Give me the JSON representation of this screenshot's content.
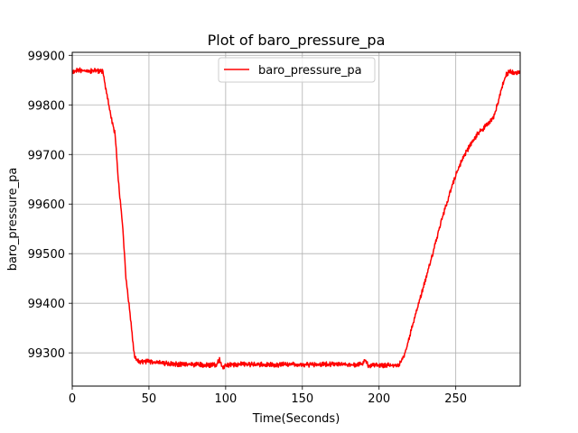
{
  "chart_data": {
    "type": "line",
    "title": "Plot of baro_pressure_pa",
    "xlabel": "Time(Seconds)",
    "ylabel": "baro_pressure_pa",
    "xlim": [
      0,
      292
    ],
    "ylim": [
      99233,
      99906
    ],
    "xticks": [
      0,
      50,
      100,
      150,
      200,
      250
    ],
    "yticks": [
      99300,
      99400,
      99500,
      99600,
      99700,
      99800,
      99900
    ],
    "grid": true,
    "legend_position": "upper-center",
    "series": [
      {
        "name": "baro_pressure_pa",
        "color": "#ff0000",
        "x": [
          0,
          5,
          10,
          15,
          19,
          20,
          22,
          25,
          28,
          30,
          33,
          35,
          38,
          40,
          41,
          42,
          43,
          44,
          45,
          47,
          50,
          55,
          60,
          65,
          70,
          75,
          80,
          85,
          90,
          94,
          95,
          96,
          97,
          98,
          100,
          105,
          110,
          115,
          120,
          125,
          130,
          135,
          140,
          145,
          150,
          155,
          160,
          165,
          170,
          175,
          180,
          185,
          189,
          190,
          191,
          192,
          193,
          195,
          200,
          205,
          210,
          213,
          215,
          218,
          220,
          225,
          230,
          235,
          240,
          245,
          250,
          255,
          260,
          265,
          268,
          270,
          272,
          275,
          278,
          280,
          283,
          285,
          288,
          290,
          292
        ],
        "y": [
          99868,
          99870,
          99868,
          99869,
          99868,
          99866,
          99830,
          99780,
          99740,
          99650,
          99550,
          99450,
          99370,
          99305,
          99290,
          99285,
          99283,
          99282,
          99281,
          99283,
          99282,
          99281,
          99279,
          99278,
          99277,
          99277,
          99276,
          99276,
          99275,
          99276,
          99281,
          99287,
          99279,
          99270,
          99275,
          99276,
          99277,
          99276,
          99277,
          99276,
          99276,
          99276,
          99277,
          99277,
          99276,
          99276,
          99276,
          99277,
          99277,
          99277,
          99276,
          99276,
          99277,
          99282,
          99287,
          99280,
          99273,
          99276,
          99275,
          99275,
          99274,
          99276,
          99285,
          99310,
          99335,
          99390,
          99445,
          99500,
          99560,
          99610,
          99660,
          99695,
          99722,
          99745,
          99752,
          99760,
          99765,
          99778,
          99810,
          99835,
          99862,
          99867,
          99866,
          99865,
          99866
        ]
      }
    ]
  },
  "colors": {
    "line": "#ff0000",
    "grid": "#b0b0b0",
    "axis": "#000000"
  }
}
